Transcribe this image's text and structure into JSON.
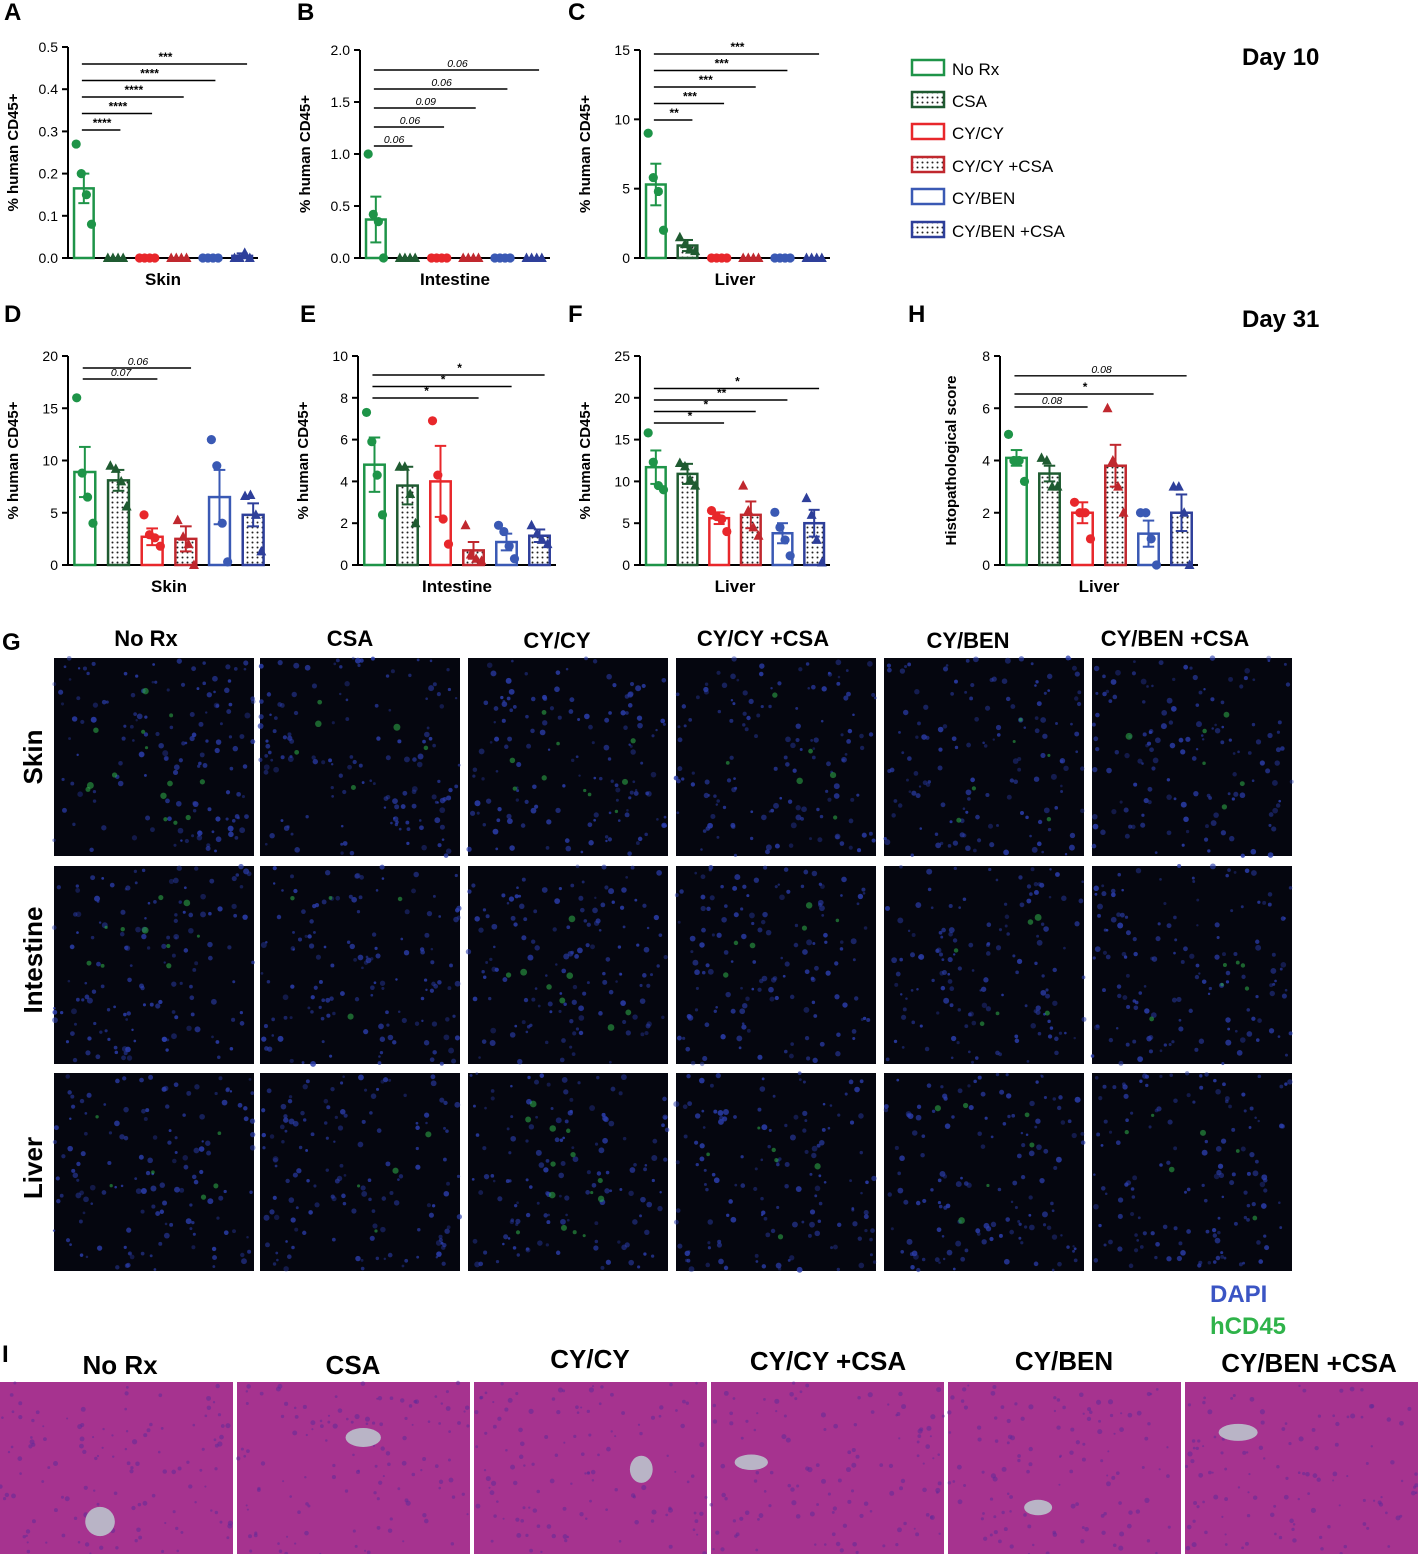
{
  "day_labels": {
    "top": "Day 10",
    "middle": "Day 31"
  },
  "legend": {
    "items": [
      {
        "label": "No Rx",
        "color": "#1e9448",
        "fill": "open"
      },
      {
        "label": "CSA",
        "color": "#1f5b31",
        "fill": "dotted"
      },
      {
        "label": "CY/CY",
        "color": "#e8272b",
        "fill": "open"
      },
      {
        "label": "CY/CY +CSA",
        "color": "#c0282e",
        "fill": "dotted"
      },
      {
        "label": "CY/BEN",
        "color": "#3a59b4",
        "fill": "open"
      },
      {
        "label": "CY/BEN +CSA",
        "color": "#2e3f9a",
        "fill": "dotted"
      }
    ]
  },
  "chart_data": [
    {
      "panel": "A",
      "type": "bar",
      "xlabel": "Skin",
      "ylabel": "% human CD45+",
      "ylim": [
        0,
        0.5
      ],
      "yticks": [
        "0.0",
        "0.1",
        "0.2",
        "0.3",
        "0.4",
        "0.5"
      ],
      "categories": [
        "No Rx",
        "CSA",
        "CY/CY",
        "CY/CY +CSA",
        "CY/BEN",
        "CY/BEN +CSA"
      ],
      "values": [
        0.165,
        0,
        0,
        0,
        0,
        0.005
      ],
      "sem": [
        0.035,
        0,
        0,
        0,
        0,
        0.006
      ],
      "points": [
        [
          0.27,
          0.2,
          0.15,
          0.08
        ],
        [
          0,
          0,
          0,
          0
        ],
        [
          0,
          0,
          0,
          0
        ],
        [
          0,
          0,
          0,
          0
        ],
        [
          0,
          0,
          0,
          0
        ],
        [
          0,
          0,
          0.012,
          0
        ]
      ],
      "annotations": [
        {
          "from": 0,
          "to": 1,
          "text": "****"
        },
        {
          "from": 0,
          "to": 2,
          "text": "****"
        },
        {
          "from": 0,
          "to": 3,
          "text": "****"
        },
        {
          "from": 0,
          "to": 4,
          "text": "****"
        },
        {
          "from": 0,
          "to": 5,
          "text": "***"
        }
      ]
    },
    {
      "panel": "B",
      "type": "bar",
      "xlabel": "Intestine",
      "ylabel": "% human CD45+",
      "ylim": [
        0,
        2.0
      ],
      "yticks": [
        "0.0",
        "0.5",
        "1.0",
        "1.5",
        "2.0"
      ],
      "categories": [
        "No Rx",
        "CSA",
        "CY/CY",
        "CY/CY +CSA",
        "CY/BEN",
        "CY/BEN +CSA"
      ],
      "values": [
        0.37,
        0,
        0,
        0,
        0,
        0
      ],
      "sem": [
        0.22,
        0,
        0,
        0,
        0,
        0
      ],
      "points": [
        [
          1.0,
          0.42,
          0.35,
          0.0
        ],
        [
          0,
          0,
          0,
          0
        ],
        [
          0,
          0,
          0,
          0
        ],
        [
          0,
          0,
          0,
          0
        ],
        [
          0,
          0,
          0,
          0
        ],
        [
          0,
          0,
          0,
          0
        ]
      ],
      "annotations": [
        {
          "from": 0,
          "to": 1,
          "text": "0.06",
          "italic": true
        },
        {
          "from": 0,
          "to": 2,
          "text": "0.06",
          "italic": true
        },
        {
          "from": 0,
          "to": 3,
          "text": "0.09",
          "italic": true
        },
        {
          "from": 0,
          "to": 4,
          "text": "0.06",
          "italic": true
        },
        {
          "from": 0,
          "to": 5,
          "text": "0.06",
          "italic": true
        }
      ]
    },
    {
      "panel": "C",
      "type": "bar",
      "xlabel": "Liver",
      "ylabel": "% human CD45+",
      "ylim": [
        0,
        15
      ],
      "yticks": [
        "0",
        "5",
        "10",
        "15"
      ],
      "categories": [
        "No Rx",
        "CSA",
        "CY/CY",
        "CY/CY +CSA",
        "CY/BEN",
        "CY/BEN +CSA"
      ],
      "values": [
        5.3,
        0.9,
        0,
        0,
        0,
        0
      ],
      "sem": [
        1.5,
        0.4,
        0,
        0,
        0,
        0
      ],
      "points": [
        [
          9.0,
          5.8,
          4.8,
          2.0
        ],
        [
          1.5,
          1.0,
          0.6,
          0.5
        ],
        [
          0,
          0,
          0,
          0
        ],
        [
          0,
          0,
          0,
          0
        ],
        [
          0,
          0,
          0,
          0
        ],
        [
          0,
          0,
          0,
          0
        ]
      ],
      "annotations": [
        {
          "from": 0,
          "to": 1,
          "text": "**"
        },
        {
          "from": 0,
          "to": 2,
          "text": "***"
        },
        {
          "from": 0,
          "to": 3,
          "text": "***"
        },
        {
          "from": 0,
          "to": 4,
          "text": "***"
        },
        {
          "from": 0,
          "to": 5,
          "text": "***"
        }
      ]
    },
    {
      "panel": "D",
      "type": "bar",
      "xlabel": "Skin",
      "ylabel": "% human CD45+",
      "ylim": [
        0,
        20
      ],
      "yticks": [
        "0",
        "5",
        "10",
        "15",
        "20"
      ],
      "categories": [
        "No Rx",
        "CSA",
        "CY/CY",
        "CY/CY +CSA",
        "CY/BEN",
        "CY/BEN +CSA"
      ],
      "values": [
        8.9,
        8.1,
        2.7,
        2.5,
        6.5,
        4.8
      ],
      "sem": [
        2.4,
        1.0,
        0.8,
        1.2,
        2.6,
        1.1
      ],
      "points": [
        [
          16.0,
          8.8,
          6.5,
          4.0
        ],
        [
          9.5,
          9.2,
          8.0,
          5.6
        ],
        [
          4.8,
          2.9,
          2.6,
          1.8
        ],
        [
          4.3,
          2.7,
          2.0,
          0.0
        ],
        [
          12.0,
          9.5,
          4.0,
          0.3
        ],
        [
          6.6,
          6.7,
          4.8,
          1.3
        ]
      ],
      "annotations": [
        {
          "from": 0,
          "to": 2,
          "text": "0.07",
          "italic": true
        },
        {
          "from": 0,
          "to": 3,
          "text": "0.06",
          "italic": true
        }
      ]
    },
    {
      "panel": "E",
      "type": "bar",
      "xlabel": "Intestine",
      "ylabel": "% human CD45+",
      "ylim": [
        0,
        10
      ],
      "yticks": [
        "0",
        "2",
        "4",
        "6",
        "8",
        "10"
      ],
      "categories": [
        "No Rx",
        "CSA",
        "CY/CY",
        "CY/CY +CSA",
        "CY/BEN",
        "CY/BEN +CSA"
      ],
      "values": [
        4.8,
        3.8,
        4.0,
        0.7,
        1.1,
        1.4
      ],
      "sem": [
        1.3,
        0.9,
        1.7,
        0.4,
        0.4,
        0.3
      ],
      "points": [
        [
          7.3,
          5.9,
          4.3,
          2.4
        ],
        [
          4.7,
          4.7,
          3.4,
          2.0
        ],
        [
          6.9,
          4.3,
          2.2,
          1.0
        ],
        [
          1.9,
          0.5,
          0.3,
          0.2
        ],
        [
          1.9,
          1.6,
          0.9,
          0.3
        ],
        [
          1.9,
          1.5,
          1.2,
          1.0
        ]
      ],
      "annotations": [
        {
          "from": 0,
          "to": 3,
          "text": "*"
        },
        {
          "from": 0,
          "to": 4,
          "text": "*"
        },
        {
          "from": 0,
          "to": 5,
          "text": "*"
        }
      ]
    },
    {
      "panel": "F",
      "type": "bar",
      "xlabel": "Liver",
      "ylabel": "% human CD45+",
      "ylim": [
        0,
        25
      ],
      "yticks": [
        "0",
        "5",
        "10",
        "15",
        "20",
        "25"
      ],
      "categories": [
        "No Rx",
        "CSA",
        "CY/CY",
        "CY/CY +CSA",
        "CY/BEN",
        "CY/BEN +CSA"
      ],
      "values": [
        11.7,
        10.9,
        5.6,
        6.0,
        3.8,
        5.0
      ],
      "sem": [
        2.0,
        1.2,
        0.7,
        1.6,
        1.2,
        1.6
      ],
      "points": [
        [
          15.8,
          12.3,
          9.5,
          9.0
        ],
        [
          12.2,
          11.8,
          10.2,
          9.5
        ],
        [
          6.5,
          5.8,
          5.5,
          4.0
        ],
        [
          9.5,
          6.5,
          4.5,
          3.5
        ],
        [
          6.3,
          4.5,
          3.0,
          1.1
        ],
        [
          8.0,
          6.0,
          3.0,
          0.3
        ]
      ],
      "annotations": [
        {
          "from": 0,
          "to": 2,
          "text": "*"
        },
        {
          "from": 0,
          "to": 3,
          "text": "*"
        },
        {
          "from": 0,
          "to": 4,
          "text": "**"
        },
        {
          "from": 0,
          "to": 5,
          "text": "*"
        }
      ]
    },
    {
      "panel": "H",
      "type": "bar",
      "xlabel": "Liver",
      "ylabel": "Histopathological score",
      "ylim": [
        0,
        8
      ],
      "yticks": [
        "0",
        "2",
        "4",
        "6",
        "8"
      ],
      "categories": [
        "No Rx",
        "CSA",
        "CY/CY",
        "CY/CY +CSA",
        "CY/BEN",
        "CY/BEN +CSA"
      ],
      "values": [
        4.1,
        3.5,
        2.0,
        3.8,
        1.2,
        2.0
      ],
      "sem": [
        0.3,
        0.3,
        0.4,
        0.8,
        0.5,
        0.7
      ],
      "points": [
        [
          5.0,
          4.0,
          4.0,
          3.2
        ],
        [
          4.1,
          4.0,
          3.0,
          3.0
        ],
        [
          2.4,
          2.0,
          2.0,
          1.0
        ],
        [
          6.0,
          4.0,
          3.0,
          2.0
        ],
        [
          2.0,
          2.0,
          1.0,
          0.0
        ],
        [
          3.0,
          3.0,
          2.0,
          0.0
        ]
      ],
      "annotations": [
        {
          "from": 0,
          "to": 2,
          "text": "0.08",
          "italic": true
        },
        {
          "from": 0,
          "to": 4,
          "text": "*"
        },
        {
          "from": 0,
          "to": 5,
          "text": "0.08",
          "italic": true
        }
      ]
    }
  ],
  "panel_g": {
    "letter": "G",
    "columns": [
      "No Rx",
      "CSA",
      "CY/CY",
      "CY/CY +CSA",
      "CY/BEN",
      "CY/BEN +CSA"
    ],
    "rows": [
      "Skin",
      "Intestine",
      "Liver"
    ],
    "stain_legend": [
      {
        "label": "DAPI",
        "color": "#3b55c4"
      },
      {
        "label": "hCD45",
        "color": "#2fb34a"
      }
    ]
  },
  "panel_i": {
    "letter": "I",
    "columns": [
      "No Rx",
      "CSA",
      "CY/CY",
      "CY/CY +CSA",
      "CY/BEN",
      "CY/BEN +CSA"
    ]
  }
}
